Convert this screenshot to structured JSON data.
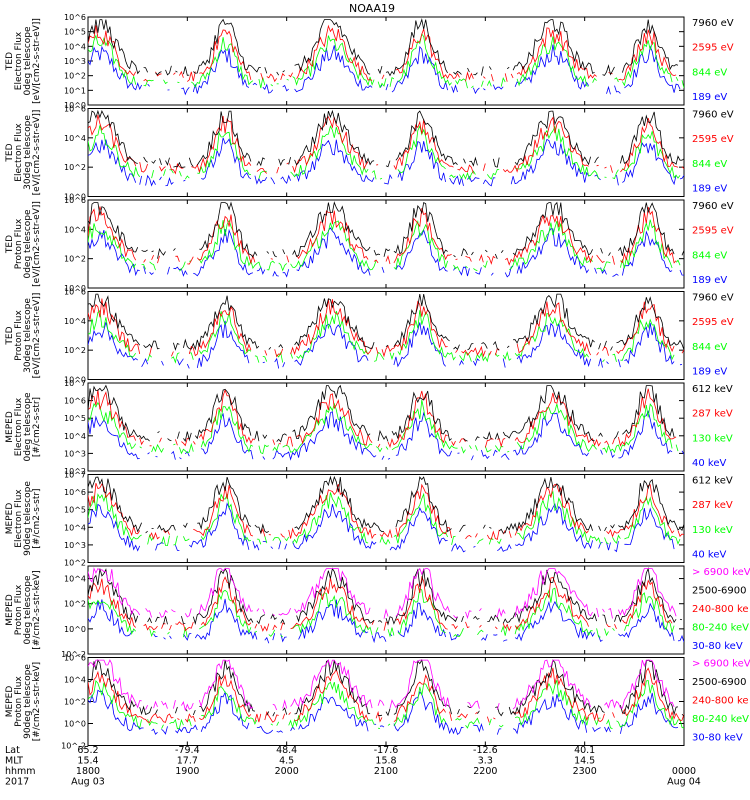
{
  "colors": {
    "black": "#000000",
    "blue": "#0000ff",
    "red": "#ff0000",
    "green": "#00ff00",
    "magenta": "#ff00ff"
  },
  "chart_data": {
    "type": "line",
    "title": "NOAA19",
    "x_range": [
      "2017-08-03 18:00",
      "2017-08-04 00:00"
    ],
    "x_ticks": [
      "1800",
      "1900",
      "2000",
      "2100",
      "2200",
      "2300",
      "0000"
    ],
    "footer": {
      "rows": [
        {
          "label": "Lat",
          "values": [
            "65.2",
            "-79.4",
            "48.4",
            "-17.6",
            "-12.6",
            "40.1"
          ]
        },
        {
          "label": "MLT",
          "values": [
            "15.4",
            "17.7",
            "4.5",
            "15.8",
            "3.3",
            "14.5"
          ]
        },
        {
          "label": "hhmm",
          "values": [
            "1800",
            "1900",
            "2000",
            "2100",
            "2200",
            "2300",
            "0000"
          ]
        },
        {
          "label": "2017",
          "values": [
            "Aug 03",
            "",
            "",
            "",
            "",
            "",
            "Aug 04"
          ]
        }
      ]
    },
    "panels": [
      {
        "ylabel": [
          "TED",
          "Electron Flux",
          "0deg telescope",
          "[eV/[cm2-s-str-eV]]"
        ],
        "ylog": [
          0,
          6
        ],
        "yticks": [
          "10^0",
          "10^1",
          "10^2",
          "10^3",
          "10^4",
          "10^5",
          "10^6"
        ],
        "legend": [
          {
            "text": "7960 eV",
            "color": "black"
          },
          {
            "text": "2595 eV",
            "color": "red"
          },
          {
            "text": "844 eV",
            "color": "green"
          },
          {
            "text": "189 eV",
            "color": "blue"
          }
        ]
      },
      {
        "ylabel": [
          "TED",
          "Electron Flux",
          "30deg telescope",
          "[eV/[cm2-s-str-eV]]"
        ],
        "ylog": [
          0,
          6
        ],
        "yticks": [
          "10^0",
          "10^2",
          "10^4",
          "10^6"
        ],
        "legend": [
          {
            "text": "7960 eV",
            "color": "black"
          },
          {
            "text": "2595 eV",
            "color": "red"
          },
          {
            "text": "844 eV",
            "color": "green"
          },
          {
            "text": "189 eV",
            "color": "blue"
          }
        ]
      },
      {
        "ylabel": [
          "TED",
          "Proton Flux",
          "0deg telescope",
          "[eV/[cm2-s-str-eV]]"
        ],
        "ylog": [
          0,
          6
        ],
        "yticks": [
          "10^0",
          "10^2",
          "10^4",
          "10^6"
        ],
        "legend": [
          {
            "text": "7960 eV",
            "color": "black"
          },
          {
            "text": "2595 eV",
            "color": "red"
          },
          {
            "text": "844 eV",
            "color": "green"
          },
          {
            "text": "189 eV",
            "color": "blue"
          }
        ]
      },
      {
        "ylabel": [
          "TED",
          "Proton Flux",
          "30deg telescope",
          "[eV/[cm2-s-str-eV]]"
        ],
        "ylog": [
          0,
          6
        ],
        "yticks": [
          "10^0",
          "10^2",
          "10^4",
          "10^6"
        ],
        "legend": [
          {
            "text": "7960 eV",
            "color": "black"
          },
          {
            "text": "2595 eV",
            "color": "red"
          },
          {
            "text": "844 eV",
            "color": "green"
          },
          {
            "text": "189 eV",
            "color": "blue"
          }
        ]
      },
      {
        "ylabel": [
          "MEPED",
          "Electron Flux",
          "0deg telescope",
          "[#/cm2-s-str]"
        ],
        "ylog": [
          2,
          7
        ],
        "yticks": [
          "10^2",
          "10^3",
          "10^4",
          "10^5",
          "10^6",
          "10^7"
        ],
        "legend": [
          {
            "text": "612 keV",
            "color": "black"
          },
          {
            "text": "287 keV",
            "color": "red"
          },
          {
            "text": "130 keV",
            "color": "green"
          },
          {
            "text": "40 keV",
            "color": "blue"
          }
        ]
      },
      {
        "ylabel": [
          "MEPED",
          "Electron Flux",
          "90deg telescope",
          "[#/cm2-s-str]"
        ],
        "ylog": [
          2,
          7
        ],
        "yticks": [
          "10^2",
          "10^3",
          "10^4",
          "10^5",
          "10^6",
          "10^7"
        ],
        "legend": [
          {
            "text": "612 keV",
            "color": "black"
          },
          {
            "text": "287 keV",
            "color": "red"
          },
          {
            "text": "130 keV",
            "color": "green"
          },
          {
            "text": "40 keV",
            "color": "blue"
          }
        ]
      },
      {
        "ylabel": [
          "MEPED",
          "Proton Flux",
          "0deg telescope",
          "[#/cm2-s-str-keV]"
        ],
        "ylog": [
          -2,
          5
        ],
        "yticks": [
          "10^-2",
          "10^0",
          "10^2",
          "10^4"
        ],
        "legend": [
          {
            "text": "> 6900 keV",
            "color": "magenta"
          },
          {
            "text": "2500-6900",
            "color": "black"
          },
          {
            "text": "240-800 ke",
            "color": "red"
          },
          {
            "text": "80-240 keV",
            "color": "green"
          },
          {
            "text": "30-80 keV",
            "color": "blue"
          }
        ]
      },
      {
        "ylabel": [
          "MEPED",
          "Proton Flux",
          "90deg telescope",
          "[#/cm2-s-str-keV]"
        ],
        "ylog": [
          -2,
          6
        ],
        "yticks": [
          "10^-2",
          "10^0",
          "10^2",
          "10^4",
          "10^6"
        ],
        "legend": [
          {
            "text": "> 6900 keV",
            "color": "magenta"
          },
          {
            "text": "2500-6900",
            "color": "black"
          },
          {
            "text": "240-800 ke",
            "color": "red"
          },
          {
            "text": "80-240 keV",
            "color": "green"
          },
          {
            "text": "30-80 keV",
            "color": "blue"
          }
        ]
      }
    ]
  }
}
